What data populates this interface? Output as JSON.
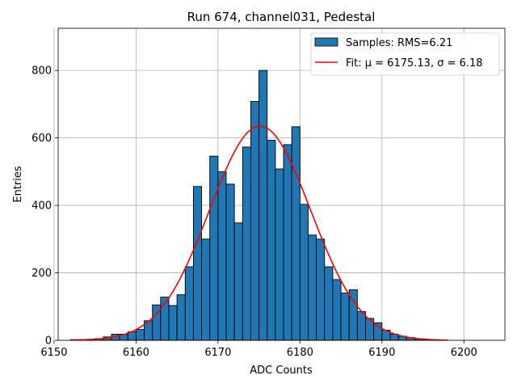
{
  "chart_data": {
    "type": "bar",
    "title": "Run 674, channel031, Pedestal",
    "xlabel": "ADC Counts",
    "ylabel": "Entries",
    "xlim": [
      6150.5,
      6205
    ],
    "ylim": [
      0,
      925
    ],
    "xticks": [
      6150,
      6160,
      6170,
      6180,
      6190,
      6200
    ],
    "yticks": [
      0,
      200,
      400,
      600,
      800
    ],
    "grid": true,
    "legend_position": "top-right",
    "bin_width": 1,
    "histogram": {
      "name": "Samples: RMS=6.21",
      "color": "#1f77b4",
      "edgecolor": "#000000",
      "bin_start": [
        6152,
        6153,
        6154,
        6155,
        6156,
        6157,
        6158,
        6159,
        6160,
        6161,
        6162,
        6163,
        6164,
        6165,
        6166,
        6167,
        6168,
        6169,
        6170,
        6171,
        6172,
        6173,
        6174,
        6175,
        6176,
        6177,
        6178,
        6179,
        6180,
        6181,
        6182,
        6183,
        6184,
        6185,
        6186,
        6187,
        6188,
        6189,
        6190,
        6191,
        6192,
        6193,
        6194,
        6195,
        6196,
        6197
      ],
      "values": [
        2,
        2,
        3,
        5,
        10,
        18,
        18,
        25,
        32,
        58,
        105,
        128,
        103,
        135,
        218,
        456,
        300,
        546,
        500,
        463,
        348,
        573,
        708,
        800,
        593,
        508,
        580,
        633,
        403,
        312,
        300,
        218,
        180,
        140,
        150,
        85,
        65,
        52,
        30,
        18,
        12,
        8,
        4,
        2,
        1,
        1
      ]
    },
    "fit": {
      "name": "Fit: μ = 6175.13, σ = 6.18",
      "color": "#ff0000",
      "mu": 6175.13,
      "sigma": 6.18,
      "amplitude": 635,
      "x_range": [
        6152,
        6198
      ]
    }
  }
}
